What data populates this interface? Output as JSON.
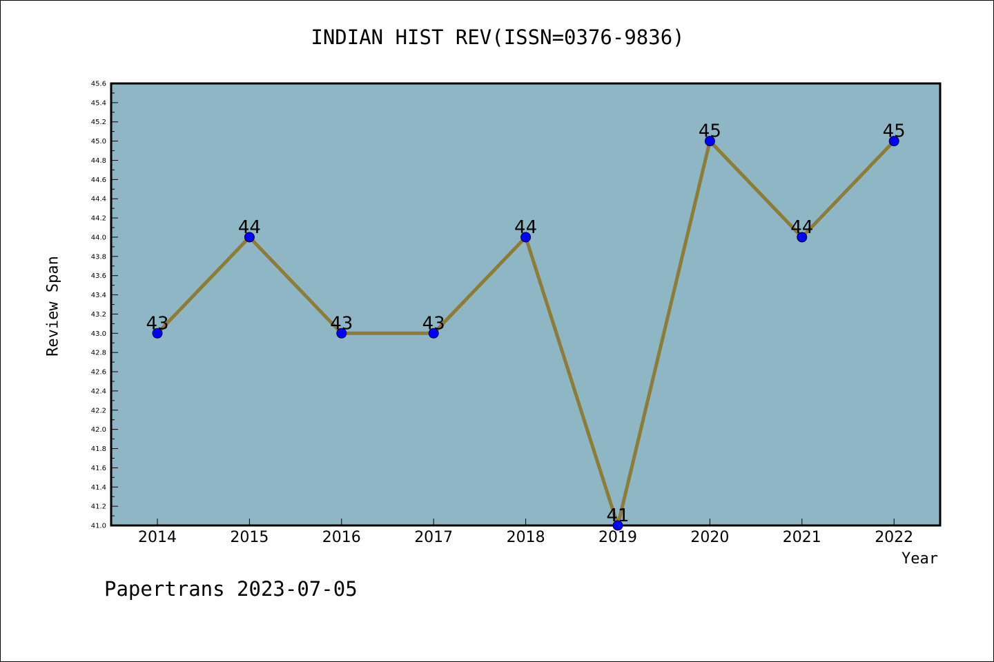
{
  "chart_data": {
    "type": "line",
    "title": "INDIAN HIST REV(ISSN=0376-9836)",
    "xlabel": "Year",
    "ylabel": "Review Span",
    "categories": [
      "2014",
      "2015",
      "2016",
      "2017",
      "2018",
      "2019",
      "2020",
      "2021",
      "2022"
    ],
    "values": [
      43,
      44,
      43,
      43,
      44,
      41,
      45,
      44,
      45
    ],
    "data_labels": [
      "43",
      "44",
      "43",
      "43",
      "44",
      "41",
      "45",
      "44",
      "45"
    ],
    "ylim": [
      41.0,
      45.6
    ],
    "yticks": [
      "41.0",
      "41.2",
      "41.4",
      "41.6",
      "41.8",
      "42.0",
      "42.2",
      "42.4",
      "42.6",
      "42.8",
      "43.0",
      "43.2",
      "43.4",
      "43.6",
      "43.8",
      "44.0",
      "44.2",
      "44.4",
      "44.6",
      "44.8",
      "45.0",
      "45.2",
      "45.4",
      "45.6"
    ],
    "grid": false,
    "legend": "none",
    "colors": {
      "plot_background": "#8fb6c4",
      "line": "#8b7c37",
      "marker": "#0000ff"
    }
  },
  "footer": {
    "note": "Papertrans 2023-07-05"
  }
}
